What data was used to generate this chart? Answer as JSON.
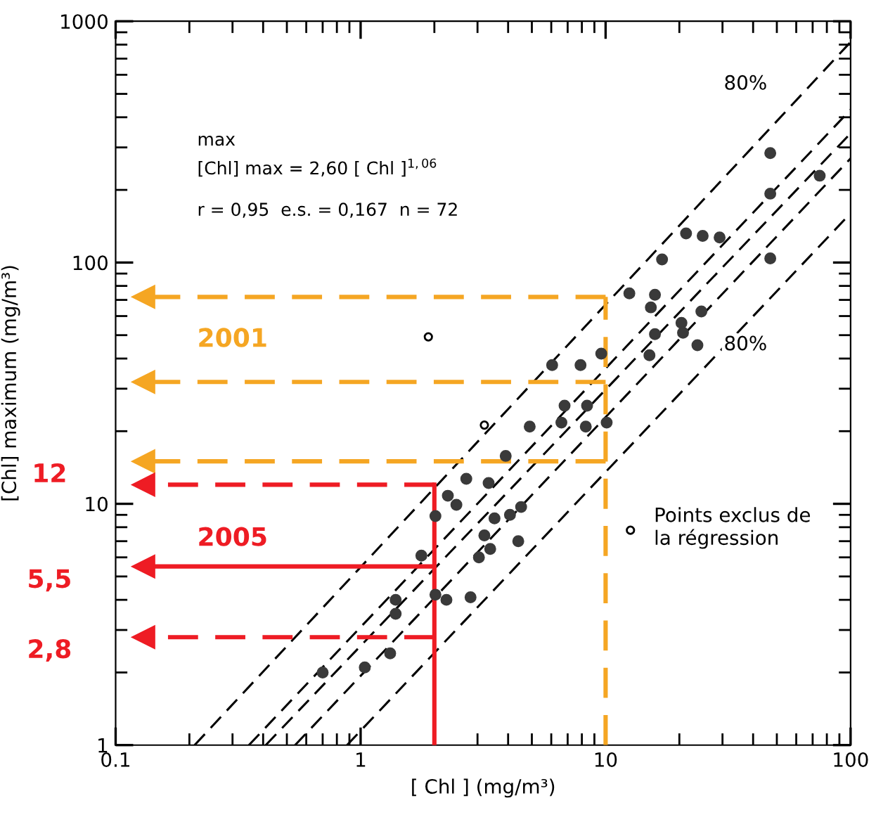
{
  "chart_data": {
    "type": "scatter",
    "xlabel": "[ Chl ] (mg/m³)",
    "ylabel": "[Chl] maximum (mg/m³)",
    "log": "xy",
    "xlim": [
      0.1,
      100
    ],
    "ylim": [
      1,
      1000
    ],
    "xticks": [
      0.1,
      1,
      10,
      100
    ],
    "yticks": [
      1,
      10,
      100,
      1000
    ],
    "grid": false,
    "legend": "right",
    "series": [
      {
        "color": "#3a3a3a",
        "marker": "circle",
        "x": [
          0.7,
          1.04,
          1.32,
          1.39,
          1.39,
          1.77,
          2.02,
          2.02,
          2.24,
          2.81,
          2.27,
          2.46,
          2.7,
          3.33,
          3.2,
          3.38,
          3.04,
          3.52,
          4.07,
          4.52,
          4.4,
          3.91,
          4.9,
          6.6,
          6.8,
          8.3,
          8.4,
          10.1,
          6.05,
          7.9,
          9.6,
          15.1,
          15.9,
          20.4,
          20.7,
          23.7,
          24.6,
          15.3,
          15.9,
          12.5,
          17.0,
          21.3,
          24.9,
          29.2,
          47,
          47,
          47,
          74.8
        ],
        "values": [
          2.0,
          2.1,
          2.4,
          3.5,
          4.0,
          6.1,
          8.9,
          4.2,
          4.0,
          4.1,
          10.8,
          9.9,
          12.7,
          12.2,
          7.4,
          6.5,
          6.0,
          8.7,
          9.0,
          9.7,
          7.0,
          15.8,
          20.9,
          21.7,
          25.5,
          20.9,
          25.5,
          21.7,
          37.6,
          37.6,
          41.9,
          41.3,
          50.5,
          56.2,
          51.2,
          45.4,
          62.7,
          65.2,
          73.5,
          74.5,
          103,
          132,
          129,
          127,
          104,
          193,
          284,
          229
        ]
      },
      {
        "name": "Points exclus de\nla régression",
        "color": "#000000",
        "marker": "circle",
        "x": [
          1.89,
          3.2
        ],
        "values": [
          49.2,
          21.2
        ]
      },
      {
        "type": "line",
        "color": "#000000",
        "line_style": "dashed",
        "x": [
          0.21,
          100
        ],
        "values": [
          1,
          820
        ]
      },
      {
        "type": "line",
        "color": "#000000",
        "line_style": "dashed",
        "x": [
          0.35,
          100
        ],
        "values": [
          1,
          430
        ]
      },
      {
        "type": "line",
        "color": "#000000",
        "line_style": "dashed",
        "x": [
          0.41,
          100
        ],
        "values": [
          1,
          343
        ]
      },
      {
        "type": "line",
        "color": "#000000",
        "line_style": "dashed",
        "x": [
          0.54,
          100
        ],
        "values": [
          1,
          270
        ]
      },
      {
        "type": "line",
        "color": "#000000",
        "line_style": "dashed",
        "x": [
          0.88,
          100
        ],
        "values": [
          1,
          160
        ]
      },
      {
        "type": "line",
        "color": "#f5a623",
        "line_style": "dashed",
        "x": [
          10,
          10
        ],
        "values": [
          1,
          72
        ]
      },
      {
        "type": "line",
        "color": "#f5a623",
        "line_style": "dashed",
        "marker": "triangle",
        "x": [
          10,
          0.13
        ],
        "values": [
          72,
          72
        ]
      },
      {
        "type": "line",
        "color": "#f5a623",
        "line_style": "dashed",
        "marker": "triangle",
        "x": [
          10,
          0.13
        ],
        "values": [
          32,
          32
        ]
      },
      {
        "type": "line",
        "color": "#f5a623",
        "line_style": "dashed",
        "marker": "triangle",
        "x": [
          10,
          0.13
        ],
        "values": [
          15,
          15
        ]
      },
      {
        "type": "line",
        "color": "#ee1c24",
        "line_style": "solid",
        "x": [
          2,
          2
        ],
        "values": [
          1,
          12
        ]
      },
      {
        "type": "line",
        "color": "#ee1c24",
        "line_style": "dashed",
        "marker": "triangle",
        "x": [
          2,
          0.13
        ],
        "values": [
          12,
          12
        ]
      },
      {
        "type": "line",
        "color": "#ee1c24",
        "line_style": "solid",
        "marker": "triangle",
        "x": [
          2,
          0.13
        ],
        "values": [
          5.5,
          5.5
        ]
      },
      {
        "type": "line",
        "color": "#ee1c24",
        "line_style": "dashed",
        "marker": "triangle",
        "x": [
          2,
          0.13
        ],
        "values": [
          2.8,
          2.8
        ]
      }
    ],
    "annotations": [
      "max",
      "[Chl] max = 2,60 [ Chl ]$^{1,06}$",
      "r = 0,95  e.s. = 0,167  n = 72",
      "80%",
      "80%",
      "2001",
      "2005",
      "12",
      "5,5",
      "2,8"
    ]
  }
}
